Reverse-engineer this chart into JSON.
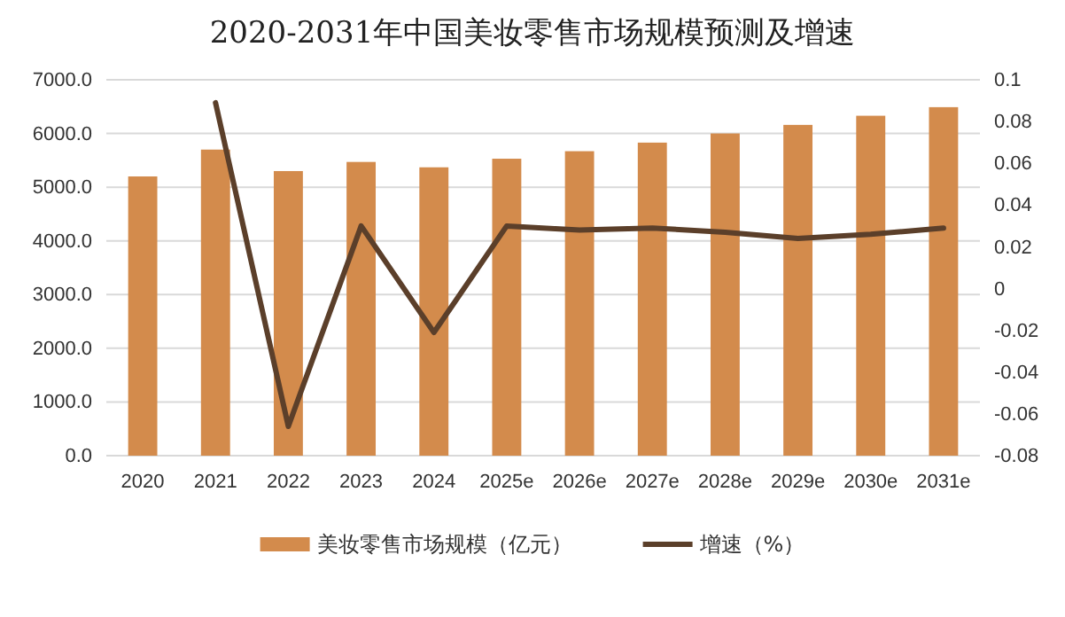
{
  "chart_data": {
    "type": "bar",
    "title": "2020-2031年中国美妆零售市场规模预测及增速",
    "categories": [
      "2020",
      "2021",
      "2022",
      "2023",
      "2024",
      "2025e",
      "2026e",
      "2027e",
      "2028e",
      "2029e",
      "2030e",
      "2031e"
    ],
    "series": [
      {
        "name": "美妆零售市场规模（亿元）",
        "color": "#d38b4c",
        "values": [
          5200,
          5700,
          5300,
          5470,
          5370,
          5530,
          5670,
          5830,
          6000,
          6160,
          6330,
          6490
        ]
      },
      {
        "name": "增速（%）",
        "type": "line",
        "axis": "y2",
        "color": "#5b3f2a",
        "values": [
          null,
          0.089,
          -0.066,
          0.03,
          -0.021,
          0.03,
          0.028,
          0.029,
          0.027,
          0.024,
          0.026,
          0.029
        ]
      }
    ],
    "ylim": [
      0,
      7000
    ],
    "yticks": [
      {
        "value": 0,
        "label": "0.0"
      },
      {
        "value": 1000,
        "label": "1000.0"
      },
      {
        "value": 2000,
        "label": "2000.0"
      },
      {
        "value": 3000,
        "label": "3000.0"
      },
      {
        "value": 4000,
        "label": "4000.0"
      },
      {
        "value": 5000,
        "label": "5000.0"
      },
      {
        "value": 6000,
        "label": "6000.0"
      },
      {
        "value": 7000,
        "label": "7000.0"
      }
    ],
    "y2lim": [
      -0.08,
      0.1
    ],
    "y2ticks": [
      -0.08,
      -0.06,
      -0.04,
      -0.02,
      0,
      0.02,
      0.04,
      0.06,
      0.08,
      0.1
    ],
    "grid": "y",
    "legend": "bottom",
    "marker": "none",
    "line_style": "solid"
  }
}
